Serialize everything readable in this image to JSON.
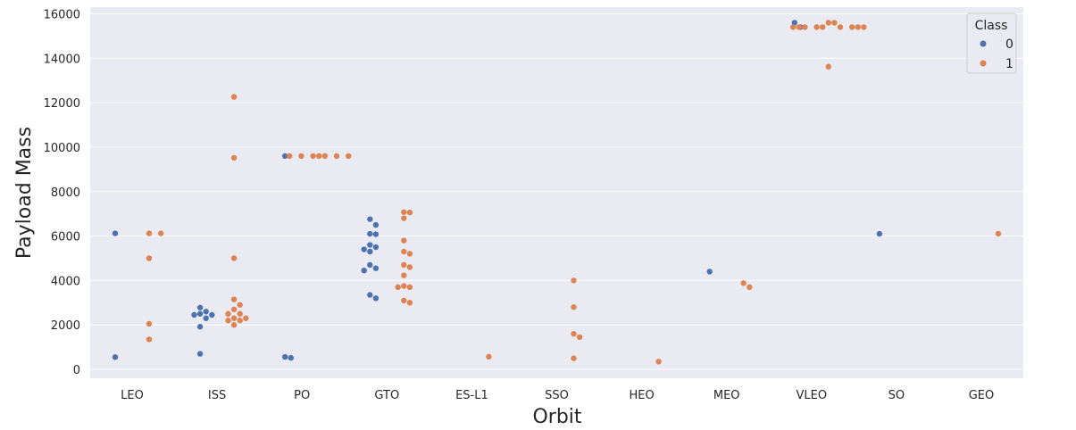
{
  "chart_data": {
    "type": "scatter",
    "subtype": "swarm",
    "xlabel": "Orbit",
    "ylabel": "Payload Mass",
    "categories": [
      "LEO",
      "ISS",
      "PO",
      "GTO",
      "ES-L1",
      "SSO",
      "HEO",
      "MEO",
      "VLEO",
      "SO",
      "GEO"
    ],
    "ylim": [
      -400,
      16300
    ],
    "yticks": [
      "0",
      "2000",
      "4000",
      "6000",
      "8000",
      "10000",
      "12000",
      "14000",
      "16000"
    ],
    "grid": true,
    "legend": {
      "title": "Class",
      "placement": "top-right",
      "entries": [
        {
          "label": "0",
          "color": "#4c72b0"
        },
        {
          "label": "1",
          "color": "#dd8452"
        }
      ]
    },
    "colors": {
      "class_0": "#4c72b0",
      "class_1": "#dd8452",
      "plot_background": "#eaeaf2",
      "grid": "#ffffff"
    },
    "series": [
      {
        "class": "0",
        "points": [
          {
            "x": "LEO",
            "y": 6120
          },
          {
            "x": "LEO",
            "y": 550
          },
          {
            "x": "ISS",
            "y": 2600
          },
          {
            "x": "ISS",
            "y": 2450
          },
          {
            "x": "ISS",
            "y": 2300
          },
          {
            "x": "ISS",
            "y": 2780
          },
          {
            "x": "ISS",
            "y": 2450
          },
          {
            "x": "ISS",
            "y": 2500
          },
          {
            "x": "ISS",
            "y": 1920
          },
          {
            "x": "ISS",
            "y": 700
          },
          {
            "x": "PO",
            "y": 9600
          },
          {
            "x": "PO",
            "y": 560
          },
          {
            "x": "PO",
            "y": 520
          },
          {
            "x": "GTO",
            "y": 6760
          },
          {
            "x": "GTO",
            "y": 6500
          },
          {
            "x": "GTO",
            "y": 6100
          },
          {
            "x": "GTO",
            "y": 6080
          },
          {
            "x": "GTO",
            "y": 5400
          },
          {
            "x": "GTO",
            "y": 5300
          },
          {
            "x": "GTO",
            "y": 5500
          },
          {
            "x": "GTO",
            "y": 5600
          },
          {
            "x": "GTO",
            "y": 4700
          },
          {
            "x": "GTO",
            "y": 4550
          },
          {
            "x": "GTO",
            "y": 4450
          },
          {
            "x": "GTO",
            "y": 3350
          },
          {
            "x": "GTO",
            "y": 3200
          },
          {
            "x": "MEO",
            "y": 4400
          },
          {
            "x": "VLEO",
            "y": 15600
          },
          {
            "x": "VLEO",
            "y": 15400
          },
          {
            "x": "SO",
            "y": 6100
          }
        ]
      },
      {
        "class": "1",
        "points": [
          {
            "x": "LEO",
            "y": 6120
          },
          {
            "x": "LEO",
            "y": 6120
          },
          {
            "x": "LEO",
            "y": 5000
          },
          {
            "x": "LEO",
            "y": 2050
          },
          {
            "x": "LEO",
            "y": 1350
          },
          {
            "x": "ISS",
            "y": 12260
          },
          {
            "x": "ISS",
            "y": 9520
          },
          {
            "x": "ISS",
            "y": 5000
          },
          {
            "x": "ISS",
            "y": 3150
          },
          {
            "x": "ISS",
            "y": 2900
          },
          {
            "x": "ISS",
            "y": 2700
          },
          {
            "x": "ISS",
            "y": 2500
          },
          {
            "x": "ISS",
            "y": 2500
          },
          {
            "x": "ISS",
            "y": 2300
          },
          {
            "x": "ISS",
            "y": 2300
          },
          {
            "x": "ISS",
            "y": 2200
          },
          {
            "x": "ISS",
            "y": 2200
          },
          {
            "x": "ISS",
            "y": 2000
          },
          {
            "x": "PO",
            "y": 9600
          },
          {
            "x": "PO",
            "y": 9600
          },
          {
            "x": "PO",
            "y": 9600
          },
          {
            "x": "PO",
            "y": 9600
          },
          {
            "x": "PO",
            "y": 9600
          },
          {
            "x": "PO",
            "y": 9600
          },
          {
            "x": "PO",
            "y": 9600
          },
          {
            "x": "GTO",
            "y": 7076
          },
          {
            "x": "GTO",
            "y": 7060
          },
          {
            "x": "GTO",
            "y": 6800
          },
          {
            "x": "GTO",
            "y": 5800
          },
          {
            "x": "GTO",
            "y": 5300
          },
          {
            "x": "GTO",
            "y": 5200
          },
          {
            "x": "GTO",
            "y": 4700
          },
          {
            "x": "GTO",
            "y": 4600
          },
          {
            "x": "GTO",
            "y": 4230
          },
          {
            "x": "GTO",
            "y": 3750
          },
          {
            "x": "GTO",
            "y": 3700
          },
          {
            "x": "GTO",
            "y": 3700
          },
          {
            "x": "GTO",
            "y": 3100
          },
          {
            "x": "GTO",
            "y": 3000
          },
          {
            "x": "ES-L1",
            "y": 570
          },
          {
            "x": "SSO",
            "y": 4000
          },
          {
            "x": "SSO",
            "y": 2800
          },
          {
            "x": "SSO",
            "y": 1600
          },
          {
            "x": "SSO",
            "y": 1450
          },
          {
            "x": "SSO",
            "y": 500
          },
          {
            "x": "HEO",
            "y": 350
          },
          {
            "x": "MEO",
            "y": 3880
          },
          {
            "x": "MEO",
            "y": 3700
          },
          {
            "x": "VLEO",
            "y": 15600
          },
          {
            "x": "VLEO",
            "y": 15400
          },
          {
            "x": "VLEO",
            "y": 15400
          },
          {
            "x": "VLEO",
            "y": 15400
          },
          {
            "x": "VLEO",
            "y": 15400
          },
          {
            "x": "VLEO",
            "y": 15400
          },
          {
            "x": "VLEO",
            "y": 15400
          },
          {
            "x": "VLEO",
            "y": 15400
          },
          {
            "x": "VLEO",
            "y": 15400
          },
          {
            "x": "VLEO",
            "y": 15400
          },
          {
            "x": "VLEO",
            "y": 15600
          },
          {
            "x": "VLEO",
            "y": 13620
          },
          {
            "x": "GEO",
            "y": 6104
          }
        ]
      }
    ]
  }
}
